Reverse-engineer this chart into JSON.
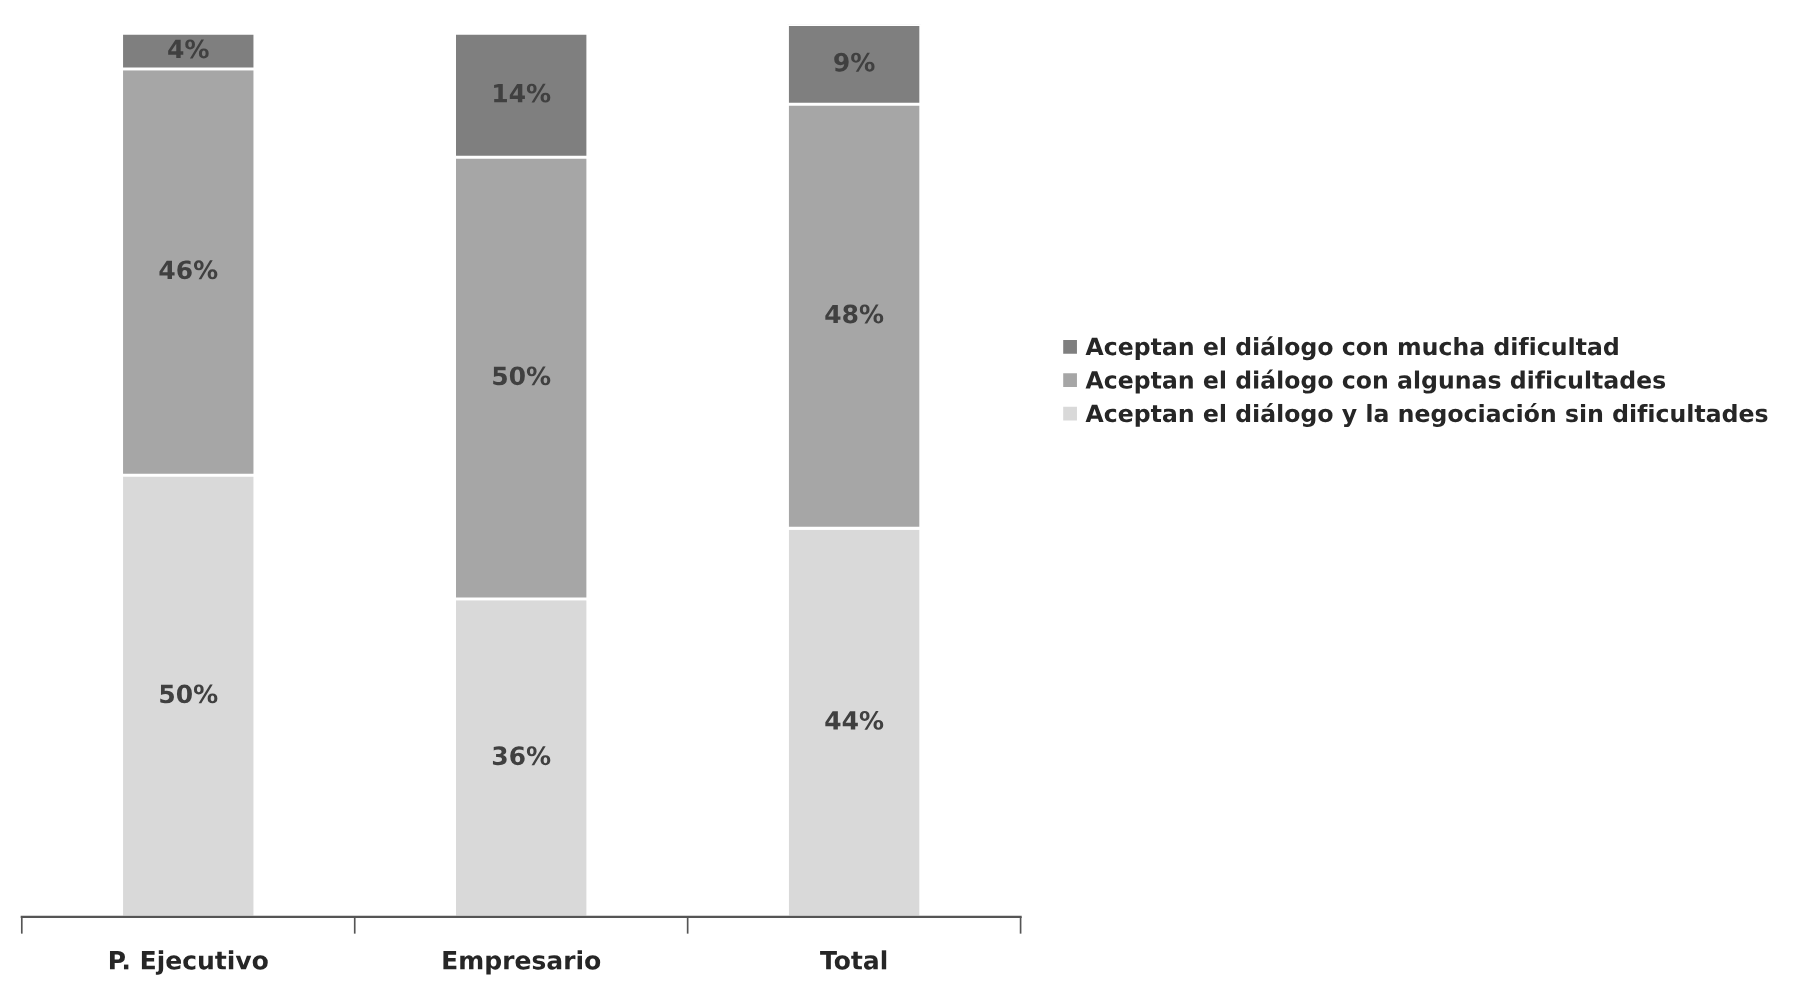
{
  "chart_data": {
    "type": "bar",
    "stacked": true,
    "categories": [
      "P. Ejecutivo",
      "Empresario",
      "Total"
    ],
    "series": [
      {
        "name": "Aceptan el diálogo y la negociación sin dificultades",
        "color": "#d9d9d9",
        "values": [
          50,
          36,
          44
        ],
        "value_labels": [
          "50%",
          "36%",
          "44%"
        ]
      },
      {
        "name": "Aceptan el diálogo con algunas dificultades",
        "color": "#a6a6a6",
        "values": [
          46,
          50,
          48
        ],
        "value_labels": [
          "46%",
          "50%",
          "48%"
        ]
      },
      {
        "name": "Aceptan el diálogo con mucha dificultad",
        "color": "#7f7f7f",
        "values": [
          4,
          14,
          9
        ],
        "value_labels": [
          "4%",
          "14%",
          "9%"
        ]
      }
    ],
    "legend": "right",
    "grid": false,
    "tick_labels": "x"
  }
}
